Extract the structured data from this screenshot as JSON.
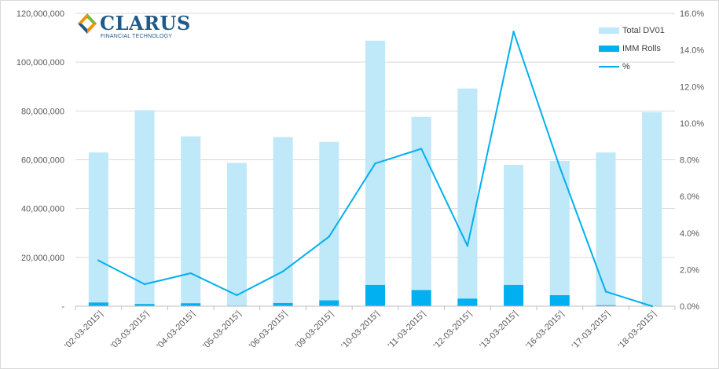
{
  "chart_data": {
    "type": "bar",
    "categories": [
      "'02-03-2015'|",
      "'03-03-2015'|",
      "'04-03-2015'|",
      "'05-03-2015'|",
      "'06-03-2015'|",
      "'09-03-2015'|",
      "'10-03-2015'|",
      "'11-03-2015'|",
      "'12-03-2015'|",
      "'13-03-2015'|",
      "'16-03-2015'|",
      "'17-03-2015'|",
      "'18-03-2015'|"
    ],
    "series": [
      {
        "name": "Total DV01",
        "kind": "bar",
        "axis": "left",
        "color": "#bfe8f8",
        "values": [
          63000000,
          80300000,
          69600000,
          58700000,
          69300000,
          67300000,
          108800000,
          77600000,
          89200000,
          57900000,
          59500000,
          63000000,
          79500000
        ]
      },
      {
        "name": "IMM Rolls",
        "kind": "bar",
        "axis": "left",
        "color": "#00b0f0",
        "values": [
          1500000,
          900000,
          1200000,
          200000,
          1300000,
          2400000,
          8700000,
          6600000,
          3100000,
          8700000,
          4500000,
          400000,
          0
        ]
      },
      {
        "name": "%",
        "kind": "line",
        "axis": "right",
        "color": "#00b0f0",
        "values": [
          2.5,
          1.2,
          1.8,
          0.6,
          1.9,
          3.8,
          7.8,
          8.6,
          3.3,
          15.0,
          7.6,
          0.8,
          0.0
        ]
      }
    ],
    "y_left": {
      "min": 0,
      "max": 120000000,
      "ticks": [
        0,
        20000000,
        40000000,
        60000000,
        80000000,
        100000000,
        120000000
      ],
      "tick_labels": [
        "-",
        "20,000,000",
        "40,000,000",
        "60,000,000",
        "80,000,000",
        "100,000,000",
        "120,000,000"
      ]
    },
    "y_right": {
      "min": 0,
      "max": 16,
      "ticks": [
        0,
        2,
        4,
        6,
        8,
        10,
        12,
        14,
        16
      ],
      "tick_labels": [
        "0.0%",
        "2.0%",
        "4.0%",
        "6.0%",
        "8.0%",
        "10.0%",
        "12.0%",
        "14.0%",
        "16.0%"
      ]
    },
    "grid": true,
    "legend_position": "top-right",
    "title": "",
    "xlabel": "",
    "ylabel": ""
  },
  "logo": {
    "word": "CLARUS",
    "tagline": "FINANCIAL TECHNOLOGY"
  }
}
